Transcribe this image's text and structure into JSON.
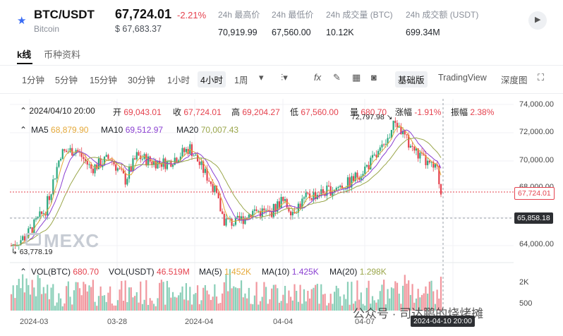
{
  "header": {
    "pair": "BTC/USDT",
    "coin": "Bitcoin",
    "price": "67,724.01",
    "change": "-2.21%",
    "fiat": "$ 67,683.37",
    "stats": [
      {
        "label": "24h 最高价",
        "value": "70,919.99"
      },
      {
        "label": "24h 最低价",
        "value": "67,560.00"
      },
      {
        "label": "24h 成交量 (BTC)",
        "value": "10.12K"
      },
      {
        "label": "24h 成交额 (USDT)",
        "value": "699.34M"
      }
    ]
  },
  "tabs": [
    "k线",
    "币种资料"
  ],
  "toolbar": {
    "intervals": [
      "1分钟",
      "5分钟",
      "15分钟",
      "30分钟",
      "1小时",
      "4小时",
      "1周"
    ],
    "selected": "4小时",
    "chart_kinds": [
      "基础版",
      "TradingView",
      "深度图"
    ]
  },
  "ohlc": {
    "date": "2024/04/10 20:00",
    "open_label": "开",
    "open": "69,043.01",
    "close_label": "收",
    "close": "67,724.01",
    "high_label": "高",
    "high": "69,204.27",
    "low_label": "低",
    "low": "67,560.00",
    "vol_label": "量",
    "vol": "680.70",
    "chg_label": "涨幅",
    "chg": "-1.91%",
    "amp_label": "振幅",
    "amp": "2.38%"
  },
  "ma": {
    "ma5_label": "MA5",
    "ma5": "68,879.90",
    "ma10_label": "MA10",
    "ma10": "69,512.97",
    "ma20_label": "MA20",
    "ma20": "70,007.43"
  },
  "volume": {
    "vol_label": "VOL(BTC)",
    "vol_btc": "680.70",
    "usdt_label": "VOL(USDT)",
    "vol_usdt": "46.519M",
    "ma5_label": "MA(5)",
    "ma5": "1.452K",
    "ma10_label": "MA(10)",
    "ma10": "1.425K",
    "ma20_label": "MA(20)",
    "ma20": "1.298K",
    "axis": [
      "2K",
      "500"
    ]
  },
  "price_axis": [
    "74,000.00",
    "72,000.00",
    "70,000.00",
    "68,000.00",
    "64,000.00"
  ],
  "price_tags": {
    "current": "67,724.01",
    "crosshair": "65,858.18"
  },
  "annotations": {
    "high": "72,797.98",
    "low": "63,778.19"
  },
  "x_axis": [
    "2024-03",
    "03-28",
    "2024-04",
    "04-04",
    "04-07"
  ],
  "crosshair_time": "2024-04-10 20:00",
  "watermark": "公众号 · 司达鹏的烧烤摊",
  "logo": "MEXC",
  "colors": {
    "up": "#2aa87e",
    "down": "#e5424e",
    "ma5": "#e5a93a",
    "ma10": "#8a3fd1",
    "ma20": "#9aa64a"
  }
}
